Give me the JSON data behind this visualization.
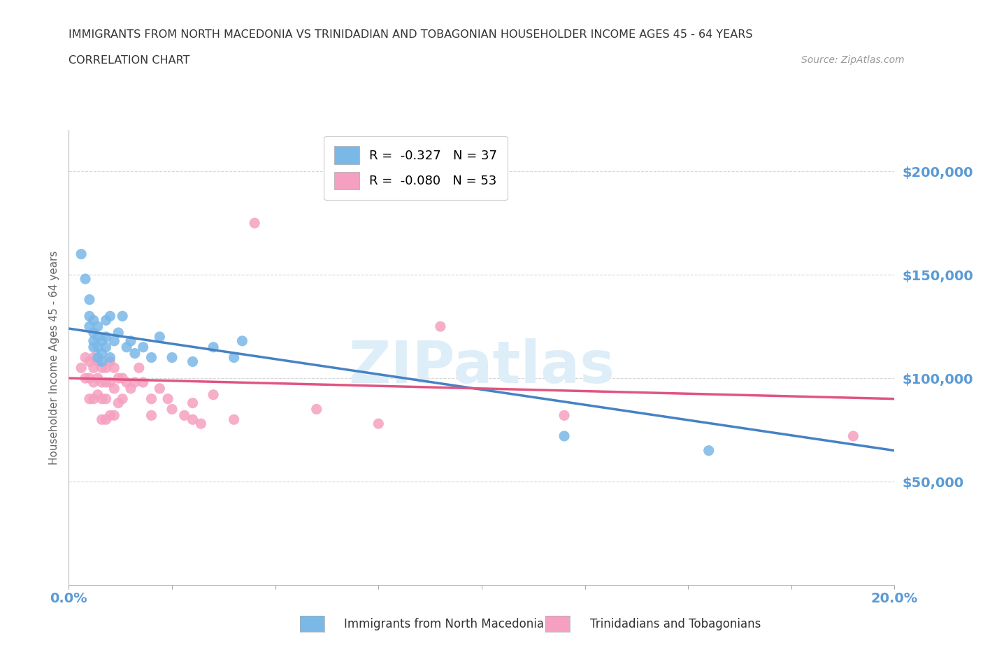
{
  "title_line1": "IMMIGRANTS FROM NORTH MACEDONIA VS TRINIDADIAN AND TOBAGONIAN HOUSEHOLDER INCOME AGES 45 - 64 YEARS",
  "title_line2": "CORRELATION CHART",
  "source": "Source: ZipAtlas.com",
  "ylabel": "Householder Income Ages 45 - 64 years",
  "xlim": [
    0.0,
    0.2
  ],
  "ylim": [
    0,
    220000
  ],
  "yticks": [
    50000,
    100000,
    150000,
    200000
  ],
  "ytick_labels": [
    "$50,000",
    "$100,000",
    "$150,000",
    "$200,000"
  ],
  "xticks": [
    0.0,
    0.025,
    0.05,
    0.075,
    0.1,
    0.125,
    0.15,
    0.175,
    0.2
  ],
  "legend_entries": [
    {
      "label": "R =  -0.327   N = 37",
      "color": "#7ab8e8"
    },
    {
      "label": "R =  -0.080   N = 53",
      "color": "#f5a0c0"
    }
  ],
  "blue_scatter_x": [
    0.003,
    0.004,
    0.005,
    0.005,
    0.005,
    0.006,
    0.006,
    0.006,
    0.006,
    0.007,
    0.007,
    0.007,
    0.007,
    0.008,
    0.008,
    0.008,
    0.009,
    0.009,
    0.009,
    0.01,
    0.01,
    0.011,
    0.012,
    0.013,
    0.014,
    0.015,
    0.016,
    0.018,
    0.02,
    0.022,
    0.025,
    0.03,
    0.035,
    0.04,
    0.042,
    0.12,
    0.155
  ],
  "blue_scatter_y": [
    160000,
    148000,
    138000,
    130000,
    125000,
    128000,
    122000,
    118000,
    115000,
    125000,
    120000,
    115000,
    110000,
    118000,
    112000,
    108000,
    128000,
    120000,
    115000,
    130000,
    110000,
    118000,
    122000,
    130000,
    115000,
    118000,
    112000,
    115000,
    110000,
    120000,
    110000,
    108000,
    115000,
    110000,
    118000,
    72000,
    65000
  ],
  "pink_scatter_x": [
    0.003,
    0.004,
    0.004,
    0.005,
    0.005,
    0.005,
    0.006,
    0.006,
    0.006,
    0.006,
    0.007,
    0.007,
    0.007,
    0.008,
    0.008,
    0.008,
    0.008,
    0.009,
    0.009,
    0.009,
    0.009,
    0.01,
    0.01,
    0.01,
    0.011,
    0.011,
    0.011,
    0.012,
    0.012,
    0.013,
    0.013,
    0.014,
    0.015,
    0.016,
    0.017,
    0.018,
    0.02,
    0.02,
    0.022,
    0.024,
    0.025,
    0.028,
    0.03,
    0.03,
    0.032,
    0.035,
    0.04,
    0.045,
    0.06,
    0.075,
    0.09,
    0.12,
    0.19
  ],
  "pink_scatter_y": [
    105000,
    110000,
    100000,
    108000,
    100000,
    90000,
    110000,
    105000,
    98000,
    90000,
    108000,
    100000,
    92000,
    105000,
    98000,
    90000,
    80000,
    105000,
    98000,
    90000,
    80000,
    108000,
    98000,
    82000,
    105000,
    95000,
    82000,
    100000,
    88000,
    100000,
    90000,
    98000,
    95000,
    98000,
    105000,
    98000,
    90000,
    82000,
    95000,
    90000,
    85000,
    82000,
    88000,
    80000,
    78000,
    92000,
    80000,
    175000,
    85000,
    78000,
    125000,
    82000,
    72000
  ],
  "blue_line_x0": 0.0,
  "blue_line_x1": 0.2,
  "blue_line_y0": 124000,
  "blue_line_y1": 65000,
  "pink_line_x0": 0.0,
  "pink_line_x1": 0.2,
  "pink_line_y0": 100000,
  "pink_line_y1": 90000,
  "blue_line_color": "#4682c4",
  "pink_line_color": "#e05580",
  "blue_dot_color": "#7ab8e8",
  "pink_dot_color": "#f5a0c0",
  "dot_size": 120,
  "background_color": "#ffffff",
  "grid_color": "#cccccc",
  "title_color": "#333333",
  "axis_label_color": "#666666",
  "tick_label_color": "#5b9bd5",
  "watermark_text": "ZIPatlas",
  "watermark_color": "#deeef8"
}
